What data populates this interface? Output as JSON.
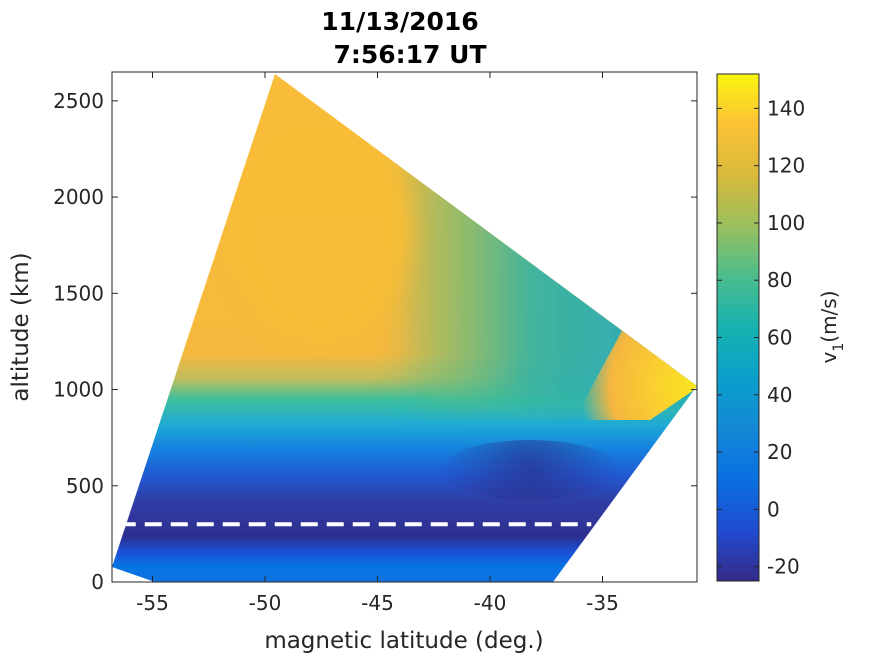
{
  "chart_data": {
    "type": "heatmap",
    "title_line1": "11/13/2016",
    "title_line2": "7:56:17 UT",
    "xlabel": "magnetic latitude (deg.)",
    "ylabel": "altitude (km)",
    "xlim": [
      -56.8,
      -30.8
    ],
    "ylim": [
      0,
      2650
    ],
    "x_ticks": [
      -55,
      -50,
      -45,
      -40,
      -35
    ],
    "y_ticks": [
      0,
      500,
      1000,
      1500,
      2000,
      2500
    ],
    "colorbar": {
      "label": "v",
      "label_subscript": "1",
      "label_units": "(m/s)",
      "clim": [
        -25,
        152
      ],
      "ticks": [
        -20,
        0,
        20,
        40,
        60,
        80,
        100,
        120,
        140
      ],
      "colormap": "parula"
    },
    "field_domain_corners": {
      "bottom_left": [
        -56.8,
        80
      ],
      "bottom_right_lat": -37.2,
      "top_left": [
        -49.6,
        2650
      ],
      "right_tip": [
        -30.8,
        1030
      ]
    },
    "field_regions": [
      {
        "region": "high-altitude west (-52 to -42 deg, 1100-2650 km)",
        "v1": 125
      },
      {
        "region": "high-altitude east near -35 deg, 1400-2000 km",
        "v1": 55
      },
      {
        "region": "mid altitude ~1000 km",
        "v1": 60
      },
      {
        "region": "~700 km",
        "v1": 15
      },
      {
        "region": "~400-450 km",
        "v1": -15
      },
      {
        "region": "~250 km",
        "v1": -25
      },
      {
        "region": "below 150 km",
        "v1": 5
      },
      {
        "region": "east tip near -33 deg, ~1000-1300 km",
        "v1": 145
      }
    ],
    "reference_line": {
      "style": "dashed",
      "color": "#ffffff",
      "altitude": 300,
      "lat_range": [
        -56.5,
        -35.5
      ]
    }
  }
}
